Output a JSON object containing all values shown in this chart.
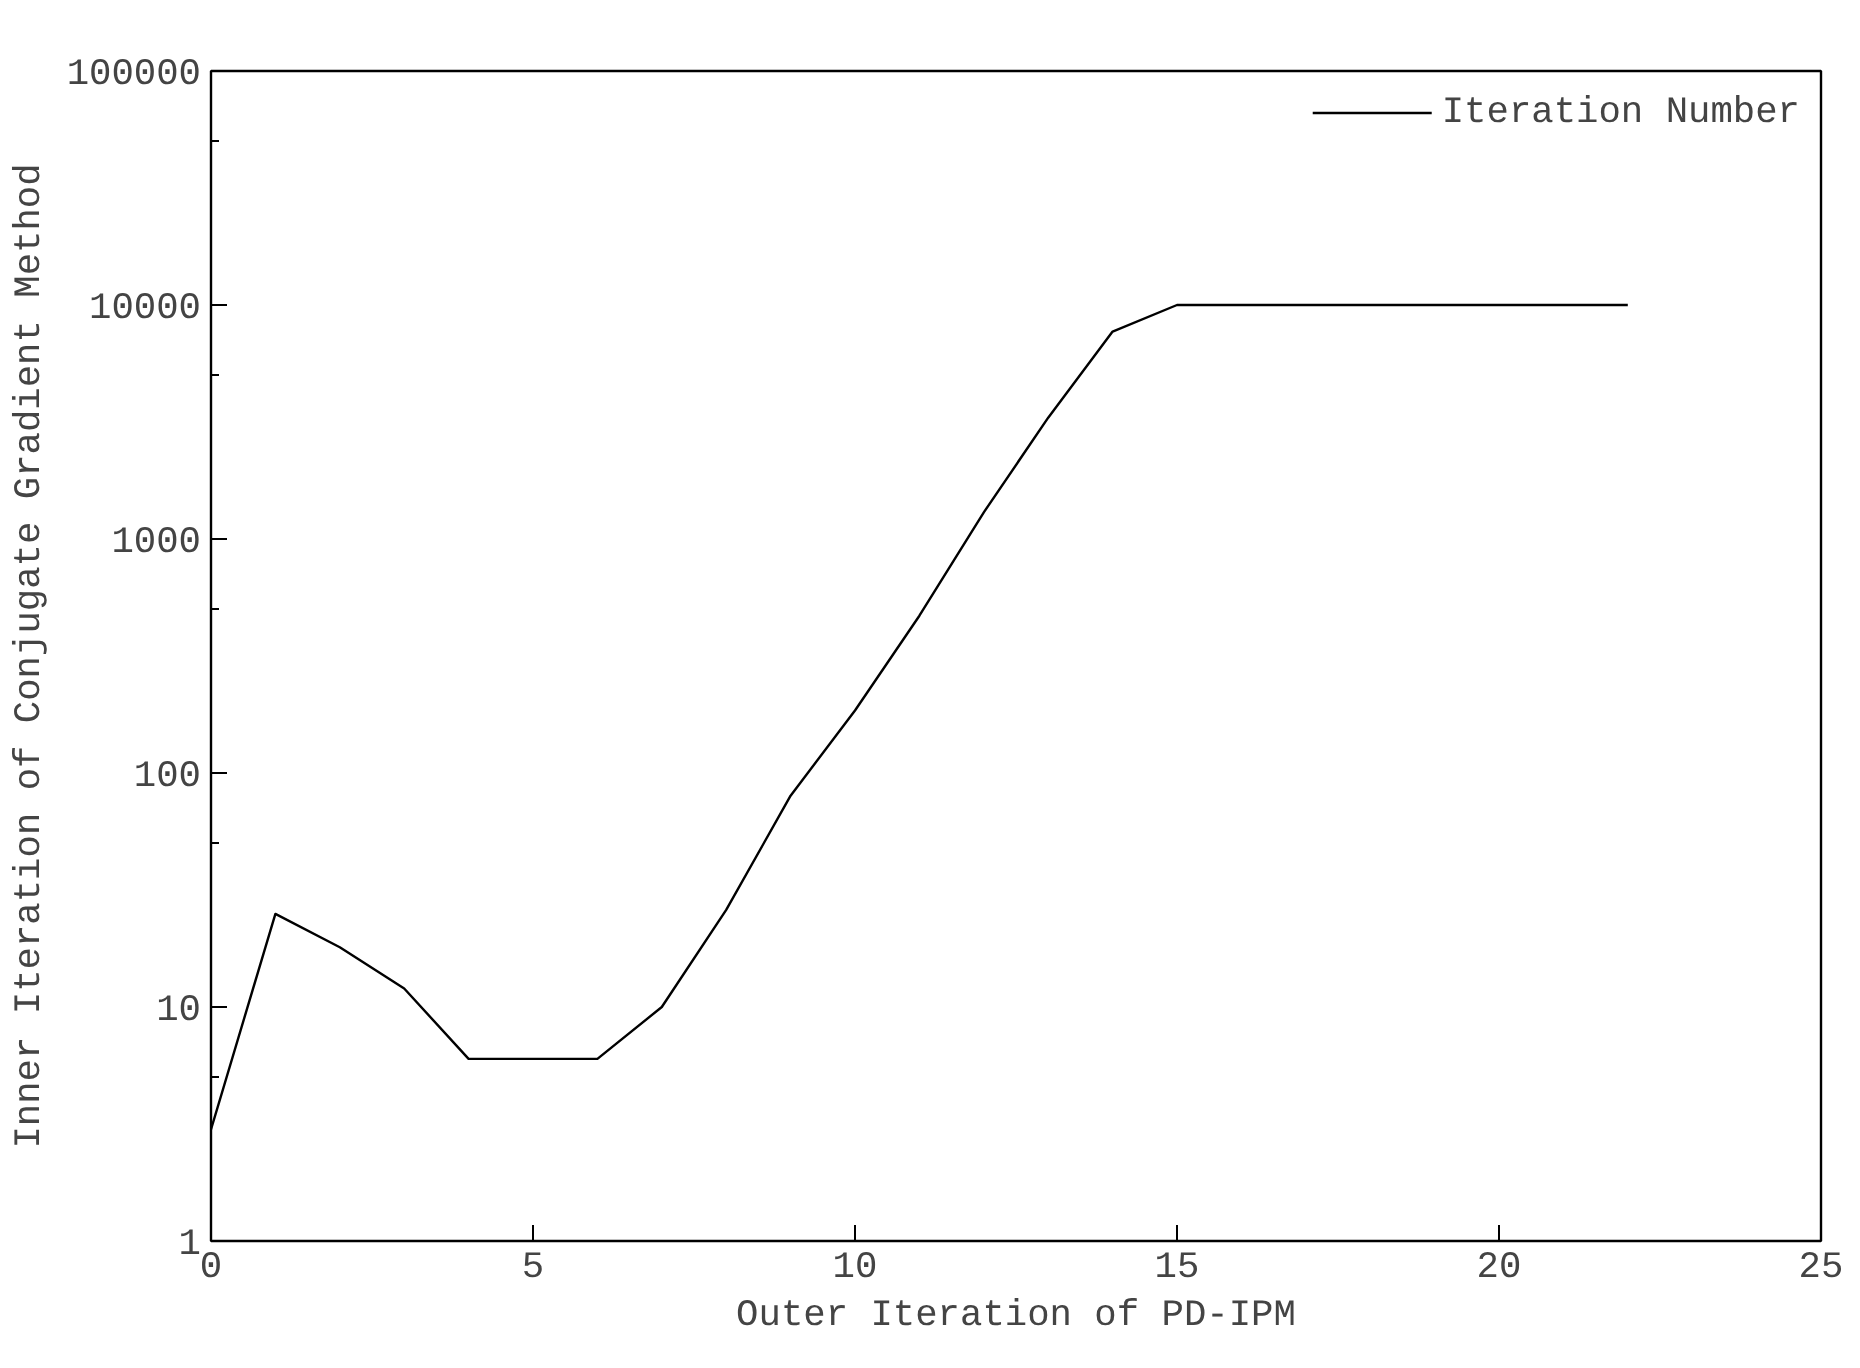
{
  "chart_data": {
    "type": "line",
    "xlabel": "Outer Iteration of PD-IPM",
    "ylabel": "Inner Iteration of Conjugate Gradient Method",
    "x": [
      0,
      1,
      2,
      3,
      4,
      5,
      6,
      7,
      8,
      9,
      10,
      11,
      12,
      13,
      14,
      15,
      16,
      17,
      18,
      19,
      20,
      21,
      22
    ],
    "series": [
      {
        "name": "Iteration Number",
        "color": "#000000",
        "values": [
          3,
          25,
          18,
          12,
          6,
          6,
          6,
          10,
          26,
          80,
          185,
          470,
          1300,
          3300,
          7700,
          10000,
          10000,
          10000,
          10000,
          10000,
          10000,
          10000,
          10000
        ]
      }
    ],
    "log": "y",
    "xlim": [
      0,
      25
    ],
    "xticks": [
      0,
      5,
      10,
      15,
      20,
      25
    ],
    "ylim": [
      1,
      100000
    ],
    "yticks": [
      1,
      10,
      100,
      1000,
      10000,
      100000
    ],
    "grid": false,
    "legend": "top right",
    "marker": "none",
    "line_style": "solid"
  }
}
